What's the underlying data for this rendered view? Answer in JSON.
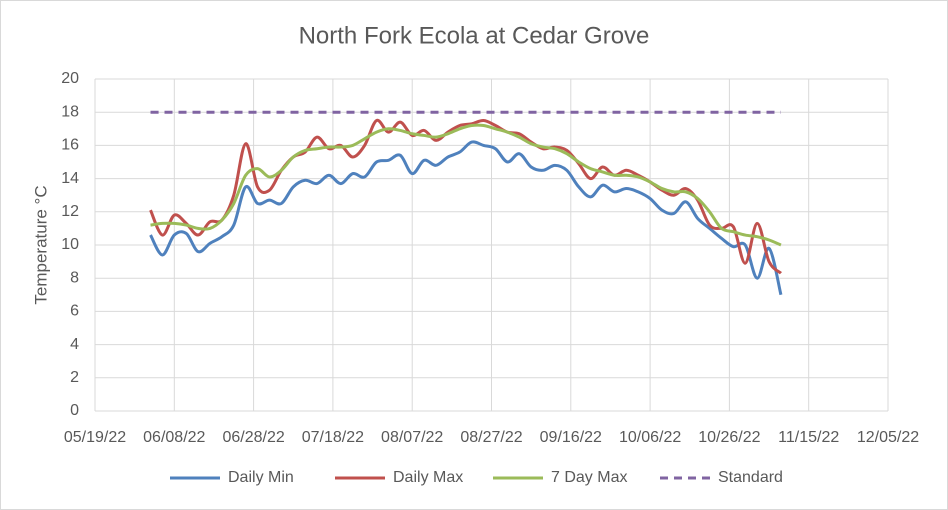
{
  "chart_data": {
    "type": "line",
    "title": "North Fork Ecola at Cedar Grove",
    "ylabel": "Temperature °C",
    "x": [
      "06/02/22",
      "06/05/22",
      "06/08/22",
      "06/11/22",
      "06/14/22",
      "06/17/22",
      "06/20/22",
      "06/23/22",
      "06/26/22",
      "06/29/22",
      "07/02/22",
      "07/05/22",
      "07/08/22",
      "07/11/22",
      "07/14/22",
      "07/17/22",
      "07/20/22",
      "07/23/22",
      "07/26/22",
      "07/29/22",
      "08/01/22",
      "08/04/22",
      "08/07/22",
      "08/10/22",
      "08/13/22",
      "08/16/22",
      "08/19/22",
      "08/22/22",
      "08/25/22",
      "08/28/22",
      "08/31/22",
      "09/03/22",
      "09/06/22",
      "09/09/22",
      "09/12/22",
      "09/15/22",
      "09/18/22",
      "09/21/22",
      "09/24/22",
      "09/27/22",
      "09/30/22",
      "10/03/22",
      "10/06/22",
      "10/09/22",
      "10/12/22",
      "10/15/22",
      "10/18/22",
      "10/21/22",
      "10/24/22",
      "10/27/22",
      "10/30/22",
      "11/02/22",
      "11/05/22",
      "11/08/22"
    ],
    "series": [
      {
        "name": "Daily Min",
        "color": "#4f81bd",
        "values": [
          10.6,
          9.4,
          10.6,
          10.7,
          9.6,
          10.1,
          10.5,
          11.2,
          13.5,
          12.5,
          12.7,
          12.5,
          13.5,
          13.9,
          13.7,
          14.2,
          13.7,
          14.3,
          14.1,
          15.0,
          15.1,
          15.4,
          14.3,
          15.1,
          14.8,
          15.3,
          15.6,
          16.2,
          16.0,
          15.8,
          15.0,
          15.5,
          14.7,
          14.5,
          14.8,
          14.5,
          13.5,
          12.9,
          13.6,
          13.2,
          13.4,
          13.2,
          12.8,
          12.1,
          11.9,
          12.6,
          11.6,
          11.0,
          10.4,
          9.9,
          10.0,
          8.0,
          9.8,
          7.0
        ]
      },
      {
        "name": "Daily Max",
        "color": "#c0504d",
        "values": [
          12.1,
          10.6,
          11.8,
          11.3,
          10.6,
          11.4,
          11.5,
          13.0,
          16.1,
          13.5,
          13.3,
          14.5,
          15.3,
          15.6,
          16.5,
          15.8,
          16.0,
          15.3,
          16.0,
          17.5,
          16.8,
          17.4,
          16.6,
          16.9,
          16.3,
          16.8,
          17.2,
          17.3,
          17.5,
          17.2,
          16.8,
          16.7,
          16.2,
          15.8,
          15.9,
          15.7,
          14.9,
          14.0,
          14.7,
          14.2,
          14.5,
          14.2,
          13.8,
          13.3,
          13.0,
          13.4,
          12.7,
          11.2,
          11.0,
          11.1,
          8.9,
          11.3,
          9.0,
          8.3
        ]
      },
      {
        "name": "7 Day Max",
        "color": "#9bbb59",
        "values": [
          11.2,
          11.3,
          11.3,
          11.2,
          11.0,
          11.0,
          11.5,
          12.5,
          14.2,
          14.6,
          14.1,
          14.5,
          15.3,
          15.7,
          15.8,
          15.9,
          15.9,
          16.0,
          16.4,
          16.8,
          17.0,
          16.9,
          16.7,
          16.6,
          16.5,
          16.7,
          17.0,
          17.2,
          17.2,
          17.0,
          16.8,
          16.5,
          16.1,
          15.9,
          15.8,
          15.5,
          15.0,
          14.6,
          14.4,
          14.2,
          14.2,
          14.1,
          13.8,
          13.4,
          13.2,
          13.2,
          12.8,
          12.0,
          11.0,
          10.8,
          10.6,
          10.5,
          10.3,
          10.0
        ]
      },
      {
        "name": "Standard",
        "color": "#8064a2",
        "dashed": true,
        "values": [
          18,
          18,
          18,
          18,
          18,
          18,
          18,
          18,
          18,
          18,
          18,
          18,
          18,
          18,
          18,
          18,
          18,
          18,
          18,
          18,
          18,
          18,
          18,
          18,
          18,
          18,
          18,
          18,
          18,
          18,
          18,
          18,
          18,
          18,
          18,
          18,
          18,
          18,
          18,
          18,
          18,
          18,
          18,
          18,
          18,
          18,
          18,
          18,
          18,
          18,
          18,
          18,
          18,
          18
        ]
      }
    ],
    "xlim": [
      "05/19/22",
      "12/05/22"
    ],
    "xticks": [
      "05/19/22",
      "06/08/22",
      "06/28/22",
      "07/18/22",
      "08/07/22",
      "08/27/22",
      "09/16/22",
      "10/06/22",
      "10/26/22",
      "11/15/22",
      "12/05/22"
    ],
    "ylim": [
      0,
      20
    ],
    "yticks": [
      0,
      2,
      4,
      6,
      8,
      10,
      12,
      14,
      16,
      18,
      20
    ],
    "grid": true,
    "legend": "bottom"
  }
}
